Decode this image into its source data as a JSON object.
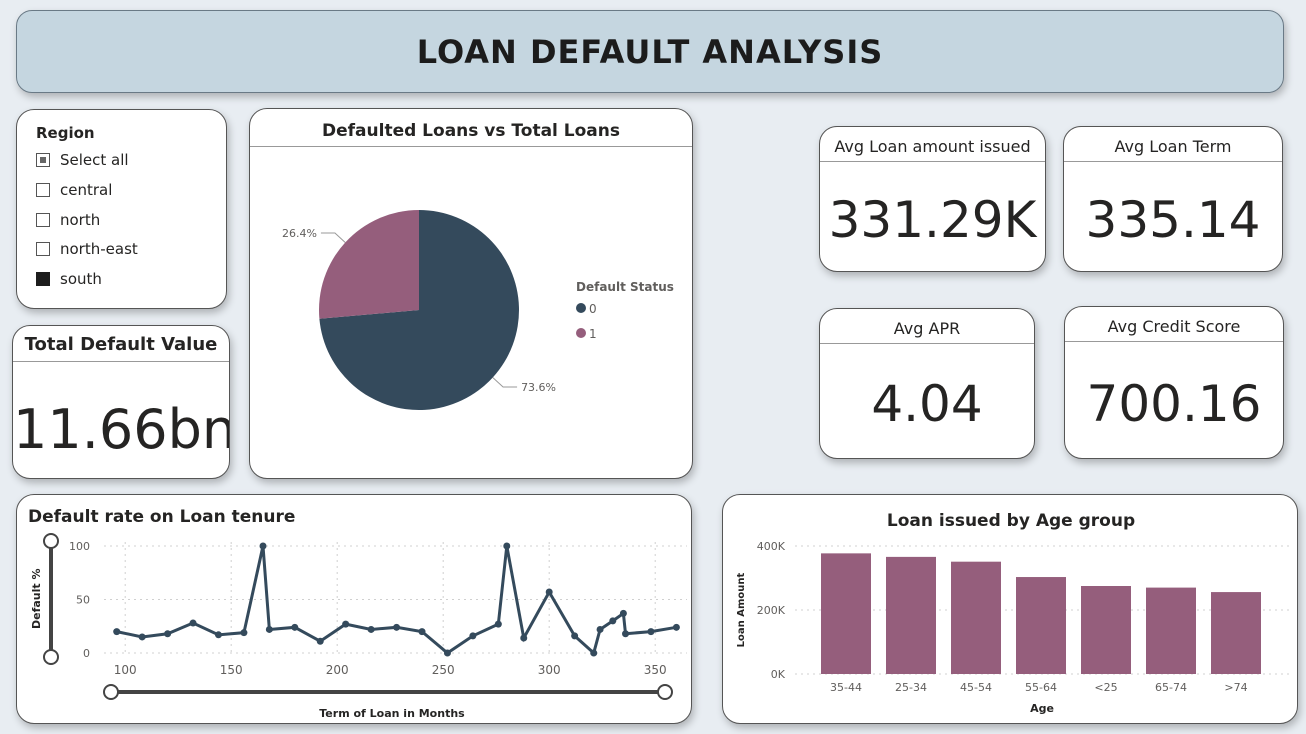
{
  "header": {
    "title": "LOAN DEFAULT ANALYSIS"
  },
  "slicer": {
    "title": "Region",
    "items": [
      {
        "label": "Select all",
        "state": "partial"
      },
      {
        "label": "central",
        "state": "unchecked"
      },
      {
        "label": "north",
        "state": "unchecked"
      },
      {
        "label": "north-east",
        "state": "unchecked"
      },
      {
        "label": "south",
        "state": "checked"
      }
    ]
  },
  "total_default": {
    "label": "Total Default Value",
    "value": "11.66bn"
  },
  "kpis": {
    "avg_loan_amount": {
      "label": "Avg Loan amount issued",
      "value": "331.29K"
    },
    "avg_loan_term": {
      "label": "Avg Loan Term",
      "value": "335.14"
    },
    "avg_apr": {
      "label": "Avg APR",
      "value": "4.04"
    },
    "avg_credit_score": {
      "label": "Avg Credit Score",
      "value": "700.16"
    }
  },
  "colors": {
    "series0": "#344a5c",
    "series1": "#955e7c",
    "bar": "#955e7c",
    "header_bg": "#c5d6e0"
  },
  "chart_data": [
    {
      "type": "pie",
      "title": "Defaulted Loans vs Total Loans",
      "legend_title": "Default Status",
      "legend_position": "right",
      "slices": [
        {
          "name": "0",
          "value": 73.6,
          "label": "73.6%"
        },
        {
          "name": "1",
          "value": 26.4,
          "label": "26.4%"
        }
      ]
    },
    {
      "type": "line",
      "title": "Default rate on Loan tenure",
      "xlabel": "Term of Loan in Months",
      "ylabel": "Default %",
      "xlim": [
        90,
        365
      ],
      "ylim": [
        0,
        100
      ],
      "xticks": [
        100,
        150,
        200,
        250,
        300,
        350
      ],
      "yticks": [
        0,
        50,
        100
      ],
      "grid": true,
      "points": [
        [
          96,
          20
        ],
        [
          108,
          15
        ],
        [
          120,
          18
        ],
        [
          132,
          28
        ],
        [
          144,
          17
        ],
        [
          156,
          19
        ],
        [
          165,
          100
        ],
        [
          168,
          22
        ],
        [
          180,
          24
        ],
        [
          192,
          11
        ],
        [
          204,
          27
        ],
        [
          216,
          22
        ],
        [
          228,
          24
        ],
        [
          240,
          20
        ],
        [
          252,
          0
        ],
        [
          264,
          16
        ],
        [
          276,
          27
        ],
        [
          280,
          100
        ],
        [
          288,
          14
        ],
        [
          300,
          57
        ],
        [
          312,
          16
        ],
        [
          321,
          0
        ],
        [
          324,
          22
        ],
        [
          330,
          30
        ],
        [
          335,
          37
        ],
        [
          336,
          18
        ],
        [
          348,
          20
        ],
        [
          360,
          24
        ]
      ]
    },
    {
      "type": "bar",
      "title": "Loan issued by Age group",
      "xlabel": "Age",
      "ylabel": "Loan Amount",
      "ylim": [
        0,
        400000
      ],
      "yticks": [
        0,
        200000,
        400000
      ],
      "ytick_labels": [
        "0K",
        "200K",
        "400K"
      ],
      "categories": [
        "35-44",
        "25-34",
        "45-54",
        "55-64",
        "<25",
        "65-74",
        ">74"
      ],
      "values": [
        377000,
        366000,
        351000,
        303000,
        275000,
        270000,
        256000
      ],
      "grid": true
    }
  ]
}
